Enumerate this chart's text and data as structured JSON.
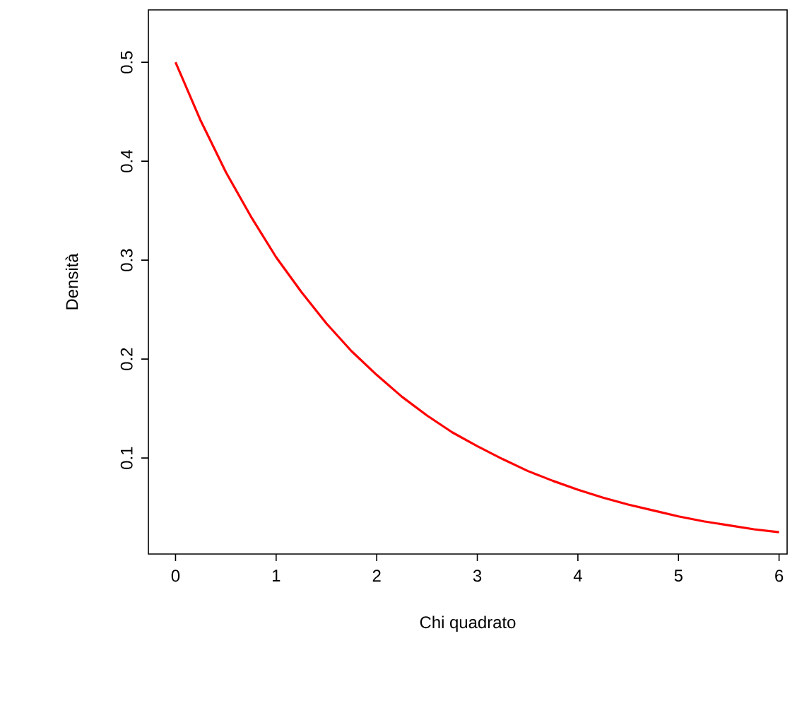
{
  "chart_data": {
    "type": "line",
    "xlabel": "Chi quadrato",
    "ylabel": "Densità",
    "x": [
      0,
      0.25,
      0.5,
      0.75,
      1,
      1.25,
      1.5,
      1.75,
      2,
      2.25,
      2.5,
      2.75,
      3,
      3.25,
      3.5,
      3.75,
      4,
      4.25,
      4.5,
      4.75,
      5,
      5.25,
      5.5,
      5.75,
      6
    ],
    "series": [
      {
        "color": "#ff0000",
        "values": [
          0.5,
          0.441,
          0.389,
          0.344,
          0.303,
          0.268,
          0.236,
          0.208,
          0.184,
          0.162,
          0.143,
          0.126,
          0.112,
          0.099,
          0.087,
          0.077,
          0.068,
          0.06,
          0.053,
          0.047,
          0.041,
          0.036,
          0.032,
          0.028,
          0.025
        ]
      }
    ],
    "xlim": [
      -0.27,
      6.08
    ],
    "ylim": [
      0.003,
      0.553
    ],
    "xticks": [
      0,
      1,
      2,
      3,
      4,
      5,
      6
    ],
    "yticks": [
      0.1,
      0.2,
      0.3,
      0.4,
      0.5
    ],
    "marker": "none",
    "line_style": "solid"
  }
}
